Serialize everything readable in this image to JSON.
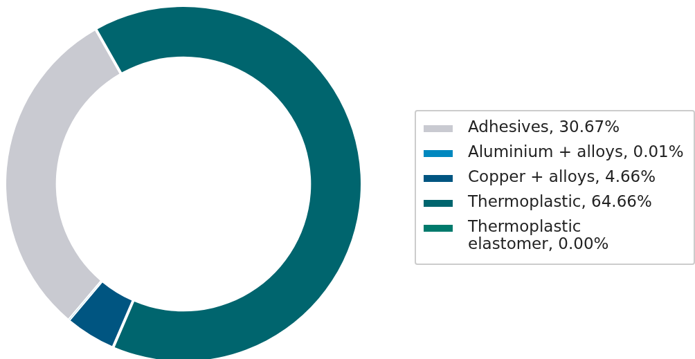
{
  "chart_data": {
    "type": "donut",
    "categories": [
      "Adhesives, 30.67%",
      "Aluminium + alloys, 0.01%",
      "Copper + alloys, 4.66%",
      "Thermoplastic, 64.66%",
      "Thermoplastic elastomer, 0.00%"
    ],
    "values": [
      30.67,
      0.01,
      4.66,
      64.66,
      0.0
    ],
    "colors": [
      "#c9cad1",
      "#0088bf",
      "#005581",
      "#00656e",
      "#007a6c"
    ],
    "legend": "right"
  }
}
